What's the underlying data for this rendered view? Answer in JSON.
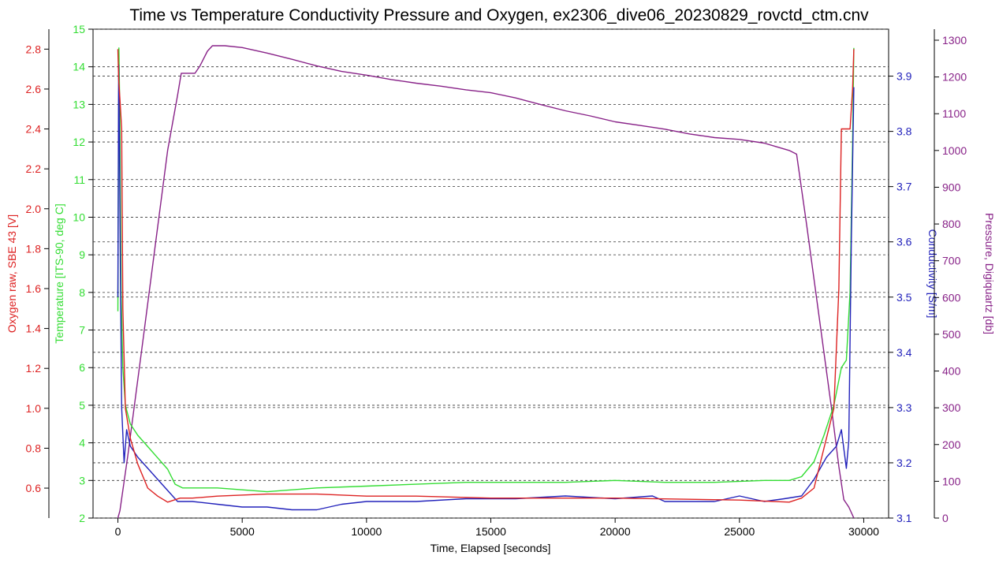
{
  "chart_data": {
    "type": "line",
    "title": "Time vs Temperature Conductivity Pressure and Oxygen, ex2306_dive06_20230829_rovctd_ctm.cnv",
    "xlabel": "Time, Elapsed [seconds]",
    "xlim": [
      -1000,
      31000
    ],
    "xticks": [
      0,
      5000,
      10000,
      15000,
      20000,
      25000,
      30000
    ],
    "grid": true,
    "axes": [
      {
        "key": "oxygen",
        "label": "Oxygen raw, SBE 43 [V]",
        "side": "left-outer",
        "color": "#dd2222",
        "range": [
          0.45,
          2.9
        ],
        "ticks": [
          0.6,
          0.8,
          1.0,
          1.2,
          1.4,
          1.6,
          1.8,
          2.0,
          2.2,
          2.4,
          2.6,
          2.8
        ],
        "decimals": 1
      },
      {
        "key": "temperature",
        "label": "Temperature [ITS-90, deg C]",
        "side": "left-inner",
        "color": "#33dd33",
        "range": [
          2,
          15
        ],
        "ticks": [
          2,
          3,
          4,
          5,
          6,
          7,
          8,
          9,
          10,
          11,
          12,
          13,
          14,
          15
        ],
        "decimals": 0
      },
      {
        "key": "conductivity",
        "label": "Conductivity [S/m]",
        "side": "right-inner",
        "color": "#2222bb",
        "range": [
          3.1,
          3.985
        ],
        "ticks": [
          3.1,
          3.2,
          3.3,
          3.4,
          3.5,
          3.6,
          3.7,
          3.8,
          3.9
        ],
        "decimals": 1
      },
      {
        "key": "pressure",
        "label": "Pressure, Digiquartz [db]",
        "side": "right-outer",
        "color": "#882288",
        "range": [
          0,
          1330
        ],
        "ticks": [
          0,
          100,
          200,
          300,
          400,
          500,
          600,
          700,
          800,
          900,
          1000,
          1100,
          1200,
          1300
        ],
        "decimals": 0
      }
    ],
    "series": [
      {
        "axis": "pressure",
        "color": "#882288",
        "x": [
          0,
          80,
          400,
          1000,
          1500,
          2000,
          2400,
          2550,
          3100,
          3300,
          3600,
          3800,
          4300,
          5000,
          6000,
          7000,
          8000,
          9000,
          10000,
          11000,
          12000,
          13000,
          14000,
          15000,
          16000,
          17000,
          18000,
          19000,
          20000,
          21000,
          22000,
          23000,
          24000,
          25000,
          26000,
          26500,
          27000,
          27300,
          27700,
          28200,
          28700,
          29000,
          29200,
          29400,
          29600
        ],
        "y": [
          0,
          20,
          170,
          480,
          740,
          1000,
          1150,
          1210,
          1210,
          1230,
          1270,
          1285,
          1285,
          1280,
          1265,
          1248,
          1230,
          1215,
          1205,
          1193,
          1183,
          1175,
          1165,
          1157,
          1143,
          1125,
          1108,
          1094,
          1078,
          1068,
          1058,
          1045,
          1035,
          1030,
          1020,
          1010,
          1000,
          990,
          800,
          550,
          300,
          140,
          50,
          30,
          0
        ]
      },
      {
        "axis": "temperature",
        "color": "#33dd33",
        "x": [
          0,
          40,
          80,
          130,
          200,
          300,
          500,
          800,
          1200,
          1600,
          2000,
          2300,
          2600,
          4000,
          6000,
          8000,
          10000,
          12000,
          14000,
          16000,
          18000,
          20000,
          22000,
          24000,
          26000,
          27000,
          27500,
          28000,
          28400,
          28800,
          29100,
          29300,
          29450,
          29550,
          29600
        ],
        "y": [
          7.5,
          14.5,
          12.5,
          8,
          6,
          5,
          4.5,
          4.2,
          3.9,
          3.6,
          3.3,
          2.9,
          2.8,
          2.8,
          2.7,
          2.8,
          2.85,
          2.9,
          2.95,
          2.95,
          2.95,
          3.0,
          2.95,
          2.95,
          3.0,
          3.0,
          3.1,
          3.5,
          4.2,
          5,
          6,
          6.2,
          8,
          12,
          14.5
        ]
      },
      {
        "axis": "conductivity",
        "color": "#2222bb",
        "x": [
          0,
          30,
          60,
          100,
          150,
          250,
          350,
          500,
          800,
          1200,
          1600,
          2000,
          2400,
          3000,
          4000,
          5000,
          6000,
          7000,
          8000,
          9000,
          10000,
          12000,
          14000,
          16000,
          18000,
          20000,
          21500,
          22000,
          24000,
          25000,
          26000,
          26800,
          27500,
          28000,
          28500,
          28900,
          29100,
          29300,
          29400,
          29500,
          29600
        ],
        "y": [
          3.5,
          3.92,
          3.8,
          3.55,
          3.3,
          3.2,
          3.26,
          3.23,
          3.21,
          3.19,
          3.17,
          3.15,
          3.13,
          3.13,
          3.125,
          3.12,
          3.12,
          3.115,
          3.115,
          3.125,
          3.13,
          3.13,
          3.135,
          3.135,
          3.14,
          3.135,
          3.14,
          3.13,
          3.13,
          3.14,
          3.13,
          3.135,
          3.14,
          3.17,
          3.21,
          3.23,
          3.26,
          3.19,
          3.24,
          3.6,
          3.88
        ]
      },
      {
        "axis": "oxygen",
        "color": "#dd2222",
        "x": [
          0,
          30,
          80,
          150,
          200,
          300,
          500,
          800,
          1200,
          1600,
          2000,
          2500,
          3000,
          4000,
          6000,
          8000,
          10000,
          12000,
          15000,
          20000,
          25000,
          27000,
          27500,
          28000,
          28400,
          28800,
          29000,
          29100,
          29300,
          29450,
          29550,
          29600
        ],
        "y": [
          2.8,
          2.65,
          2.55,
          2.4,
          1.5,
          1.0,
          0.85,
          0.72,
          0.6,
          0.56,
          0.53,
          0.55,
          0.55,
          0.56,
          0.57,
          0.57,
          0.56,
          0.56,
          0.55,
          0.55,
          0.54,
          0.53,
          0.55,
          0.6,
          0.8,
          1.0,
          1.6,
          2.4,
          2.4,
          2.4,
          2.6,
          2.8
        ]
      }
    ]
  }
}
